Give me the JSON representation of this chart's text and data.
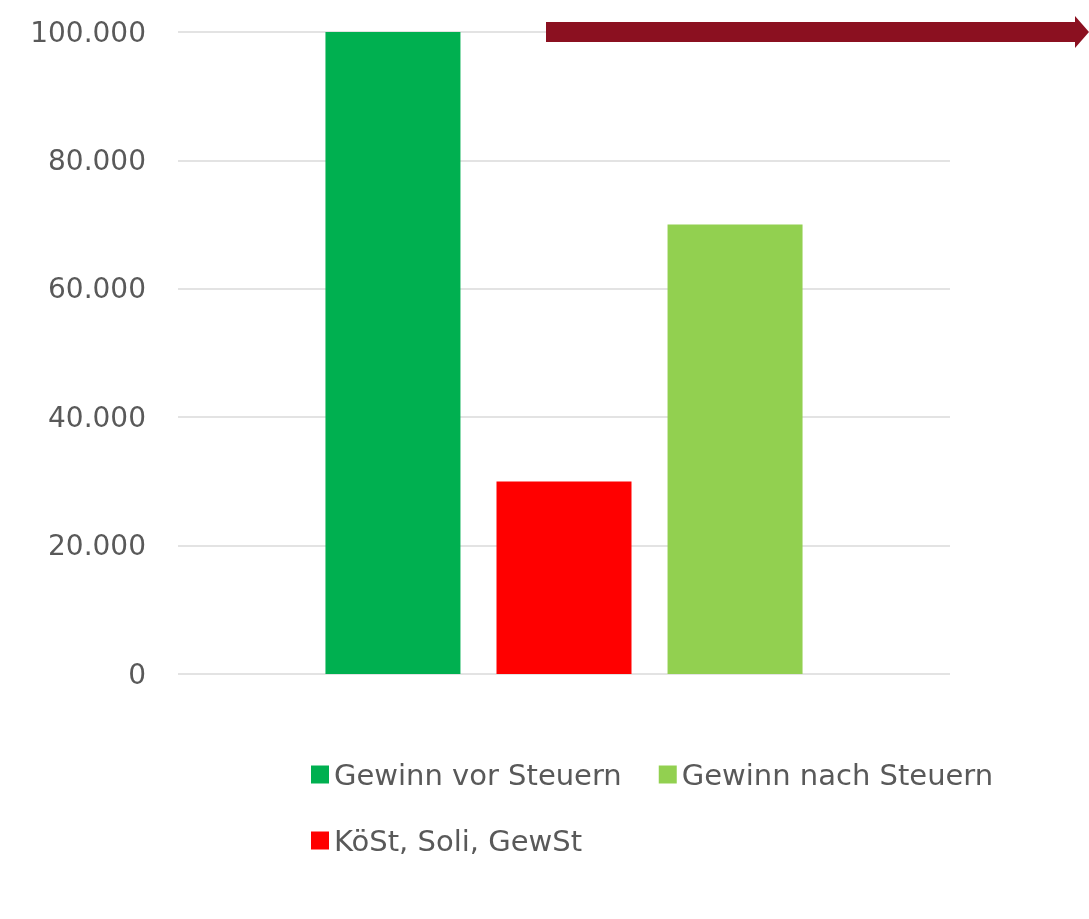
{
  "chart_data": {
    "type": "bar",
    "categories": [
      null
    ],
    "series": [
      {
        "name": "Gewinn vor Steuern",
        "color": "#00b050",
        "values": [
          100000
        ]
      },
      {
        "name": "KöSt, Soli, GewSt",
        "color": "#ff0000",
        "values": [
          30000
        ]
      },
      {
        "name": "Gewinn nach Steuern",
        "color": "#92d050",
        "values": [
          70000
        ]
      }
    ],
    "ylim": [
      0,
      100000
    ],
    "yticks": [
      {
        "value": 0,
        "label": "0"
      },
      {
        "value": 20000,
        "label": "20.000"
      },
      {
        "value": 40000,
        "label": "40.000"
      },
      {
        "value": 60000,
        "label": "60.000"
      },
      {
        "value": 80000,
        "label": "80.000"
      },
      {
        "value": 100000,
        "label": "100.000"
      }
    ],
    "grid": "y",
    "legend": "bottom"
  }
}
